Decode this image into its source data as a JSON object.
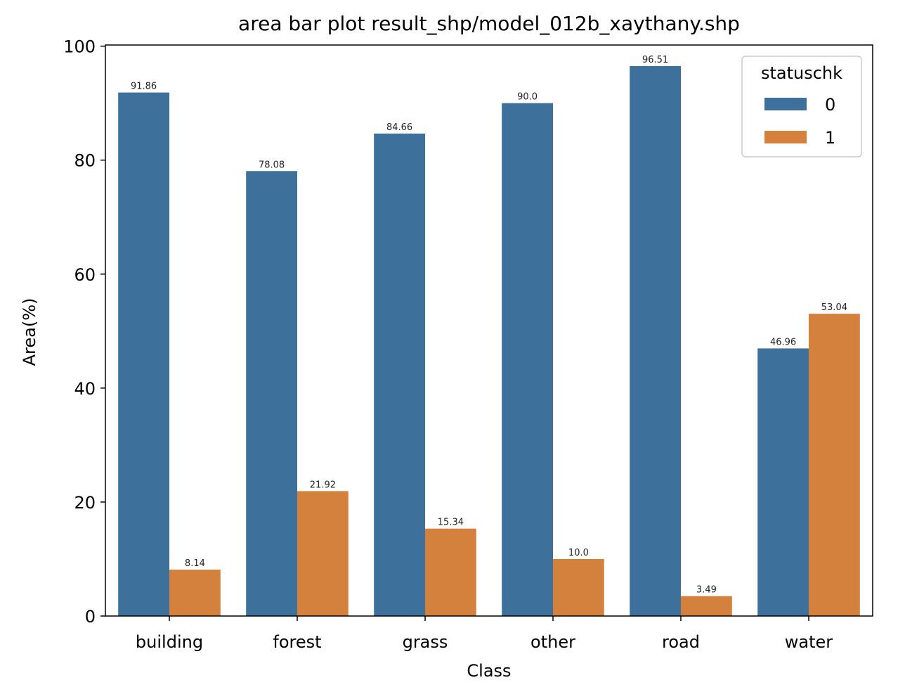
{
  "chart_data": {
    "type": "bar",
    "title": "area bar plot result_shp/model_012b_xaythany.shp",
    "xlabel": "Class",
    "ylabel": "Area(%)",
    "categories": [
      "building",
      "forest",
      "grass",
      "other",
      "road",
      "water"
    ],
    "series": [
      {
        "name": "0",
        "color": "#3d719c",
        "values": [
          91.86,
          78.08,
          84.66,
          90.0,
          96.51,
          46.96
        ],
        "labels": [
          "91.86",
          "78.08",
          "84.66",
          "90.0",
          "96.51",
          "46.96"
        ]
      },
      {
        "name": "1",
        "color": "#d4813e",
        "values": [
          8.14,
          21.92,
          15.34,
          10.0,
          3.49,
          53.04
        ],
        "labels": [
          "8.14",
          "21.92",
          "15.34",
          "10.0",
          "3.49",
          "53.04"
        ]
      }
    ],
    "ylim": [
      0,
      100.2
    ],
    "yticks": [
      0,
      20,
      40,
      60,
      80,
      100
    ],
    "ytick_labels": [
      "0",
      "20",
      "40",
      "60",
      "80",
      "100"
    ],
    "legend": {
      "title": "statuschk",
      "placement": "upper right"
    },
    "grid": false
  }
}
